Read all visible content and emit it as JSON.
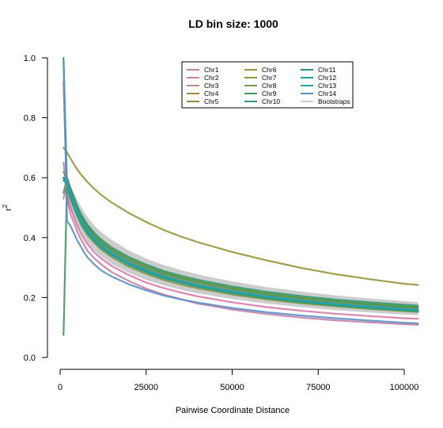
{
  "chart_data": {
    "type": "line",
    "title": "LD bin size: 1000",
    "xlabel": "Pairwise Coordinate Distance",
    "ylabel": "r",
    "ylabel_superscript": "2",
    "xlim": [
      0,
      104000
    ],
    "ylim": [
      0,
      1.0
    ],
    "x_ticks": [
      0,
      25000,
      50000,
      75000,
      100000
    ],
    "y_ticks": [
      0.0,
      0.2,
      0.4,
      0.6,
      0.8,
      1.0
    ],
    "x_tick_labels": [
      "0",
      "25000",
      "50000",
      "75000",
      "100000"
    ],
    "y_tick_labels": [
      "0.0",
      "0.2",
      "0.4",
      "0.6",
      "0.8",
      "1.0"
    ],
    "grid": false,
    "legend_position": "top-right",
    "legend_columns": 3,
    "x": [
      1000,
      2000,
      3000,
      4000,
      5000,
      6000,
      7000,
      8000,
      10000,
      12000,
      15000,
      20000,
      25000,
      30000,
      35000,
      40000,
      50000,
      60000,
      70000,
      80000,
      90000,
      100000,
      104000
    ],
    "series": [
      {
        "name": "Chr1",
        "color": "#c97fa6",
        "values": [
          0.92,
          0.53,
          0.48,
          0.45,
          0.42,
          0.395,
          0.375,
          0.355,
          0.33,
          0.31,
          0.285,
          0.255,
          0.23,
          0.21,
          0.195,
          0.18,
          0.16,
          0.145,
          0.133,
          0.124,
          0.117,
          0.111,
          0.109
        ]
      },
      {
        "name": "Chr2",
        "color": "#d77aa8",
        "values": [
          0.65,
          0.55,
          0.505,
          0.47,
          0.44,
          0.415,
          0.395,
          0.378,
          0.35,
          0.33,
          0.305,
          0.275,
          0.25,
          0.232,
          0.217,
          0.204,
          0.184,
          0.168,
          0.156,
          0.146,
          0.138,
          0.131,
          0.129
        ]
      },
      {
        "name": "Chr3",
        "color": "#c0897f",
        "values": [
          0.53,
          0.58,
          0.54,
          0.51,
          0.48,
          0.455,
          0.435,
          0.417,
          0.39,
          0.368,
          0.343,
          0.31,
          0.285,
          0.265,
          0.25,
          0.236,
          0.214,
          0.197,
          0.183,
          0.172,
          0.163,
          0.155,
          0.152
        ]
      },
      {
        "name": "Chr4",
        "color": "#a8873c",
        "values": [
          0.55,
          0.6,
          0.56,
          0.53,
          0.5,
          0.475,
          0.455,
          0.437,
          0.41,
          0.388,
          0.362,
          0.33,
          0.305,
          0.284,
          0.268,
          0.254,
          0.232,
          0.214,
          0.2,
          0.189,
          0.179,
          0.171,
          0.168
        ]
      },
      {
        "name": "Chr5",
        "color": "#998a3f",
        "values": [
          0.62,
          0.59,
          0.55,
          0.52,
          0.49,
          0.465,
          0.445,
          0.427,
          0.4,
          0.378,
          0.352,
          0.32,
          0.295,
          0.275,
          0.259,
          0.245,
          0.223,
          0.206,
          0.192,
          0.181,
          0.172,
          0.164,
          0.161
        ]
      },
      {
        "name": "Chr6",
        "color": "#9a943c",
        "values": [
          0.7,
          0.685,
          0.665,
          0.645,
          0.627,
          0.612,
          0.598,
          0.585,
          0.562,
          0.542,
          0.517,
          0.482,
          0.452,
          0.426,
          0.404,
          0.385,
          0.352,
          0.324,
          0.299,
          0.278,
          0.261,
          0.246,
          0.242
        ]
      },
      {
        "name": "Chr7",
        "color": "#8c9a3f",
        "values": [
          0.6,
          0.6,
          0.56,
          0.53,
          0.5,
          0.475,
          0.455,
          0.437,
          0.41,
          0.388,
          0.362,
          0.33,
          0.305,
          0.284,
          0.268,
          0.254,
          0.232,
          0.214,
          0.2,
          0.189,
          0.179,
          0.171,
          0.168
        ]
      },
      {
        "name": "Chr8",
        "color": "#6f9a4a",
        "values": [
          0.55,
          0.57,
          0.53,
          0.5,
          0.47,
          0.445,
          0.425,
          0.408,
          0.382,
          0.36,
          0.335,
          0.303,
          0.279,
          0.259,
          0.244,
          0.231,
          0.21,
          0.194,
          0.181,
          0.171,
          0.162,
          0.155,
          0.152
        ]
      },
      {
        "name": "Chr9",
        "color": "#3f9a5a",
        "values": [
          0.075,
          0.58,
          0.555,
          0.525,
          0.495,
          0.47,
          0.45,
          0.432,
          0.405,
          0.383,
          0.358,
          0.326,
          0.301,
          0.281,
          0.265,
          0.251,
          0.229,
          0.211,
          0.197,
          0.186,
          0.177,
          0.169,
          0.166
        ]
      },
      {
        "name": "Chr10",
        "color": "#2f9a75",
        "values": [
          0.59,
          0.6,
          0.565,
          0.535,
          0.505,
          0.48,
          0.46,
          0.442,
          0.415,
          0.393,
          0.367,
          0.335,
          0.31,
          0.289,
          0.273,
          0.259,
          0.237,
          0.219,
          0.205,
          0.193,
          0.184,
          0.176,
          0.173
        ]
      },
      {
        "name": "Chr11",
        "color": "#1f9a7f",
        "values": [
          0.6,
          0.57,
          0.535,
          0.505,
          0.475,
          0.452,
          0.432,
          0.415,
          0.389,
          0.367,
          0.342,
          0.31,
          0.286,
          0.266,
          0.251,
          0.237,
          0.216,
          0.199,
          0.186,
          0.175,
          0.166,
          0.158,
          0.155
        ]
      },
      {
        "name": "Chr12",
        "color": "#1aa39a",
        "values": [
          0.6,
          0.575,
          0.54,
          0.51,
          0.48,
          0.456,
          0.436,
          0.418,
          0.392,
          0.37,
          0.345,
          0.313,
          0.289,
          0.269,
          0.253,
          0.24,
          0.219,
          0.202,
          0.188,
          0.177,
          0.168,
          0.16,
          0.157
        ]
      },
      {
        "name": "Chr13",
        "color": "#2aa0b0",
        "values": [
          1.0,
          0.58,
          0.545,
          0.515,
          0.485,
          0.461,
          0.441,
          0.423,
          0.396,
          0.374,
          0.349,
          0.317,
          0.292,
          0.272,
          0.256,
          0.242,
          0.221,
          0.204,
          0.19,
          0.179,
          0.17,
          0.162,
          0.159
        ]
      },
      {
        "name": "Chr14",
        "color": "#5a90c8",
        "values": [
          1.0,
          0.455,
          0.44,
          0.415,
          0.39,
          0.37,
          0.35,
          0.333,
          0.31,
          0.29,
          0.27,
          0.244,
          0.224,
          0.207,
          0.194,
          0.183,
          0.165,
          0.151,
          0.14,
          0.131,
          0.123,
          0.116,
          0.114
        ]
      }
    ],
    "bootstraps": {
      "name": "Bootstraps",
      "color": "#cccccc",
      "x": [
        2000,
        3000,
        4000,
        5000,
        6000,
        7000,
        8000,
        10000,
        12000,
        15000,
        20000,
        25000,
        30000,
        35000,
        40000,
        50000,
        60000,
        70000,
        80000,
        90000,
        100000,
        104000
      ],
      "upper": [
        0.6,
        0.575,
        0.55,
        0.525,
        0.505,
        0.485,
        0.468,
        0.44,
        0.418,
        0.392,
        0.357,
        0.33,
        0.309,
        0.292,
        0.277,
        0.254,
        0.235,
        0.22,
        0.207,
        0.197,
        0.188,
        0.185
      ],
      "lower": [
        0.52,
        0.49,
        0.465,
        0.44,
        0.42,
        0.4,
        0.383,
        0.357,
        0.336,
        0.312,
        0.282,
        0.259,
        0.241,
        0.226,
        0.214,
        0.195,
        0.18,
        0.168,
        0.158,
        0.15,
        0.143,
        0.141
      ]
    }
  }
}
